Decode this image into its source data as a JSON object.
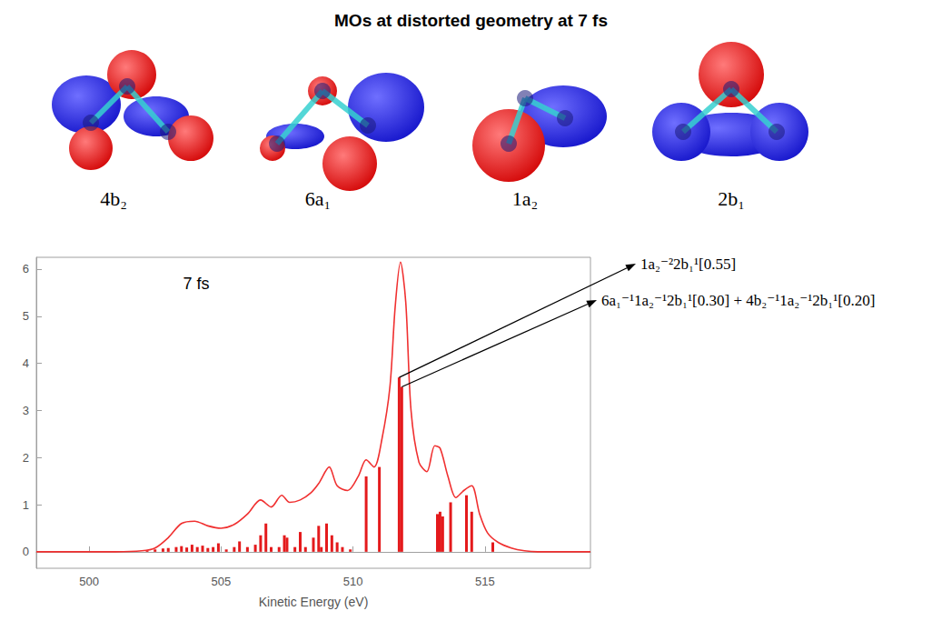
{
  "figure": {
    "title": "MOs at distorted geometry at 7 fs",
    "orbital_labels": [
      "4b₂",
      "6a₁",
      "1a₂",
      "2b₁"
    ]
  },
  "chart_data": {
    "type": "bar",
    "inset_label": "7 fs",
    "x_label": "Kinetic Energy (eV)",
    "xlim": [
      498,
      519
    ],
    "xticks": [
      500,
      505,
      510,
      515
    ],
    "ylim": [
      -0.35,
      6.25
    ],
    "yticks": [
      0,
      1,
      2,
      3,
      4,
      5,
      6
    ],
    "grid": false,
    "series": [
      {
        "type": "bar",
        "color": "#e41a1c",
        "x": [
          502.2,
          502.5,
          502.8,
          503.0,
          503.3,
          503.5,
          503.7,
          503.9,
          504.1,
          504.3,
          504.5,
          504.7,
          504.9,
          505.2,
          505.5,
          505.7,
          506.0,
          506.3,
          506.5,
          506.7,
          506.9,
          507.2,
          507.4,
          507.5,
          507.8,
          508.0,
          508.2,
          508.5,
          508.7,
          508.8,
          509.0,
          509.2,
          509.4,
          509.6,
          509.9,
          510.5,
          511.0,
          511.75,
          511.85,
          513.2,
          513.3,
          513.4,
          513.7,
          514.3,
          514.5,
          515.3
        ],
        "values": [
          0.03,
          0.05,
          0.07,
          0.08,
          0.1,
          0.12,
          0.09,
          0.15,
          0.1,
          0.13,
          0.08,
          0.1,
          0.18,
          0.05,
          0.1,
          0.22,
          0.1,
          0.15,
          0.35,
          0.6,
          0.1,
          0.1,
          0.35,
          0.3,
          0.1,
          0.42,
          0.1,
          0.3,
          0.55,
          0.1,
          0.6,
          0.35,
          0.2,
          0.1,
          0.05,
          1.6,
          1.8,
          3.7,
          3.5,
          0.8,
          0.85,
          0.75,
          1.05,
          1.2,
          0.85,
          0.2
        ]
      },
      {
        "type": "line",
        "color": "#f03030",
        "x": [
          498,
          501,
          502,
          502.5,
          503,
          503.5,
          504,
          504.5,
          505,
          505.5,
          506,
          506.5,
          506.9,
          507.3,
          507.6,
          508,
          508.4,
          508.7,
          509.1,
          509.4,
          509.8,
          510.2,
          510.5,
          510.8,
          511.1,
          511.4,
          511.6,
          511.8,
          512.0,
          512.2,
          512.5,
          512.8,
          513.1,
          513.3,
          513.6,
          513.9,
          514.2,
          514.5,
          514.8,
          515.1,
          515.5,
          516,
          516.5,
          517,
          519
        ],
        "values": [
          0,
          0,
          0.02,
          0.08,
          0.3,
          0.6,
          0.65,
          0.55,
          0.5,
          0.58,
          0.8,
          1.1,
          0.95,
          1.2,
          1.05,
          1.1,
          1.25,
          1.45,
          1.8,
          1.4,
          1.3,
          1.6,
          1.95,
          1.8,
          2.4,
          3.5,
          5.2,
          6.15,
          5.3,
          3.0,
          1.9,
          1.7,
          2.25,
          2.2,
          1.6,
          1.15,
          1.3,
          1.4,
          0.8,
          0.4,
          0.2,
          0.08,
          0.02,
          0,
          0
        ]
      }
    ],
    "annotations": [
      {
        "text": "1a₂⁻²2b₁¹[0.55]",
        "x": 511.75,
        "y": 3.7
      },
      {
        "text": "6a₁⁻¹1a₂⁻¹2b₁¹[0.30] + 4b₂⁻¹1a₂⁻¹2b₁¹[0.20]",
        "x": 511.85,
        "y": 3.5
      }
    ]
  }
}
